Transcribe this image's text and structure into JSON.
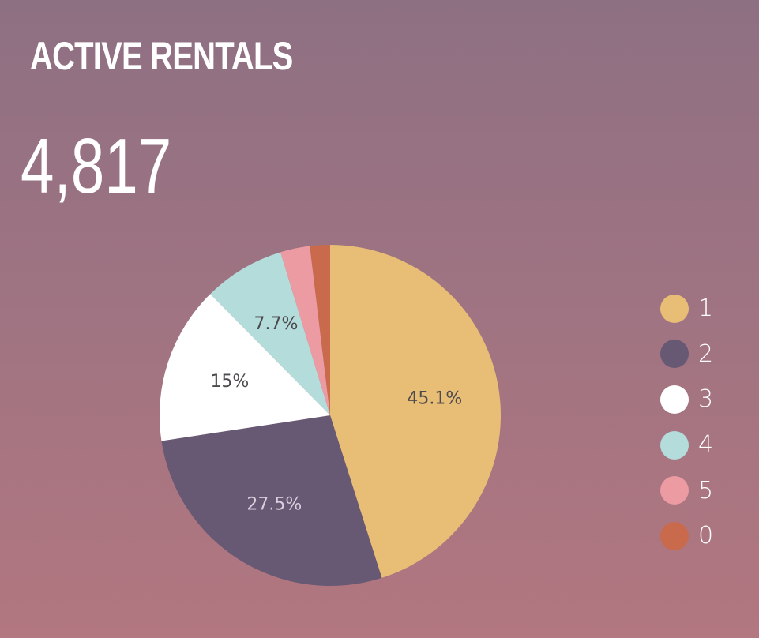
{
  "header": {
    "title": "ACTIVE RENTALS",
    "total": "4,817"
  },
  "chart_data": {
    "type": "pie",
    "categories": [
      "1",
      "2",
      "3",
      "4",
      "5",
      "0"
    ],
    "values": [
      45.1,
      27.5,
      15.0,
      7.7,
      2.8,
      1.9
    ],
    "labels": [
      "45.1%",
      "27.5%",
      "15%",
      "7.7%",
      "",
      ""
    ],
    "colors": [
      "#e8be76",
      "#675874",
      "#ffffff",
      "#b3dcdb",
      "#eb9ba1",
      "#c96a4c"
    ],
    "label_colors": [
      "#4d4a4e",
      "#d8d0dc",
      "#4d4a4e",
      "#4d4a4e",
      "#4d4a4e",
      "#4d4a4e"
    ],
    "legend_position": "right",
    "start": "top",
    "direction": "clockwise"
  }
}
